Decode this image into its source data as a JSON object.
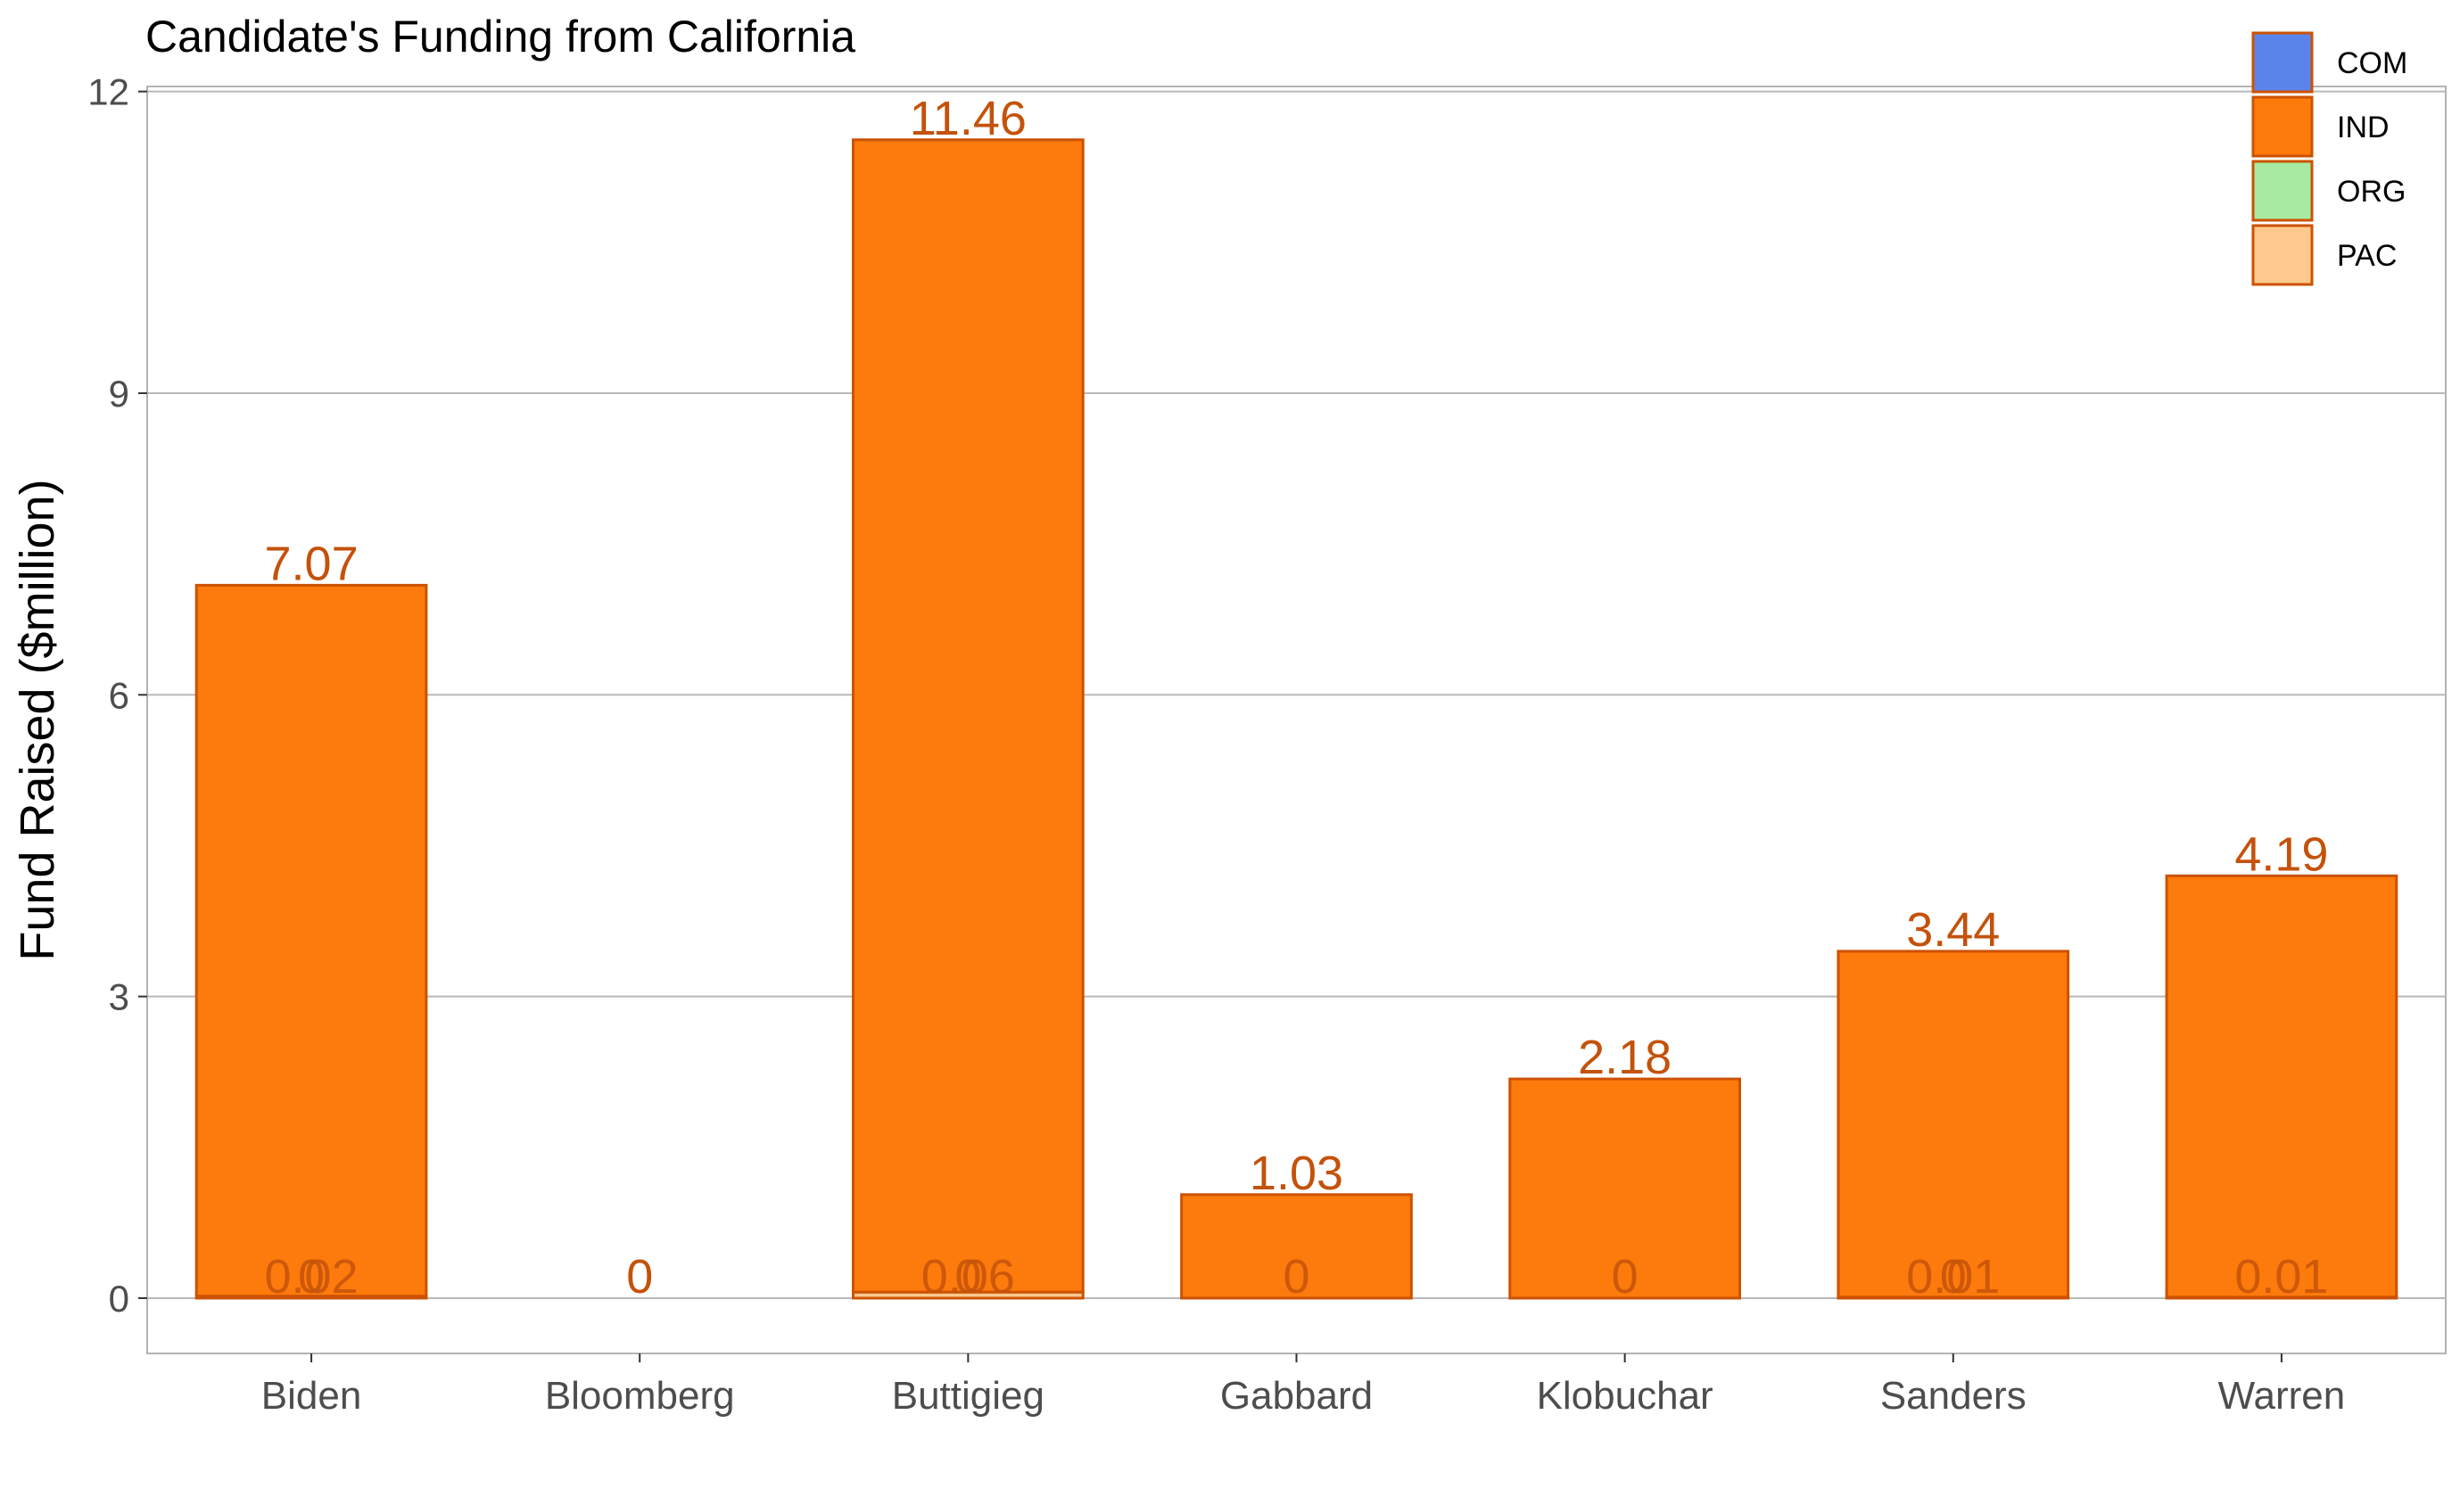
{
  "chart_data": {
    "type": "bar",
    "title": "Candidate's Funding from California",
    "xlabel": "",
    "ylabel": "Fund Raised ($million)",
    "ylim": [
      -0.55,
      12.05
    ],
    "yticks": [
      0,
      3,
      6,
      9,
      12
    ],
    "grid": true,
    "legend_position": "top-right",
    "stacked": true,
    "categories": [
      "Biden",
      "Bloomberg",
      "Buttigieg",
      "Gabbard",
      "Klobuchar",
      "Sanders",
      "Warren"
    ],
    "series": [
      {
        "name": "COM",
        "color": "#5b84ea",
        "values": [
          0,
          0,
          0,
          0,
          0,
          0,
          0
        ]
      },
      {
        "name": "IND",
        "color": "#fd7a0c",
        "values": [
          7.07,
          0,
          11.46,
          1.03,
          2.18,
          3.44,
          4.19
        ]
      },
      {
        "name": "ORG",
        "color": "#a7eba2",
        "values": [
          0,
          0,
          0,
          0,
          0,
          0,
          0
        ]
      },
      {
        "name": "PAC",
        "color": "#ffc98e",
        "values": [
          0.02,
          0,
          0.06,
          0,
          0,
          0.01,
          0.01
        ]
      }
    ],
    "top_labels": [
      "7.07",
      "0",
      "11.46",
      "1.03",
      "2.18",
      "3.44",
      "4.19"
    ],
    "bottom_labels": [
      "0.02",
      "",
      "0.06",
      "0",
      "0",
      "0.01",
      "0.01"
    ],
    "bottom_labels_secondary": [
      "0",
      "",
      "0",
      "",
      "",
      "0",
      ""
    ],
    "bar_edge_color": "#cc5200",
    "label_color": "#c4520b"
  }
}
